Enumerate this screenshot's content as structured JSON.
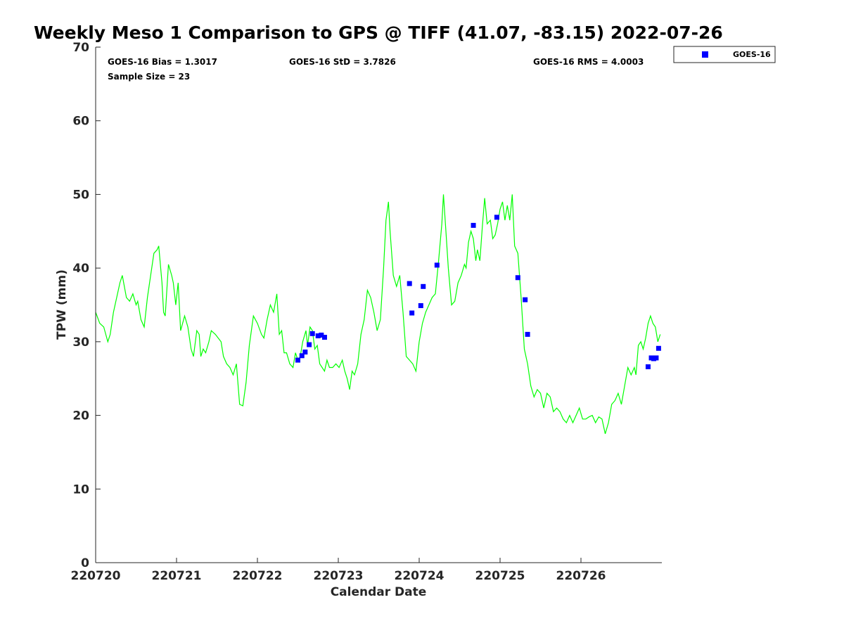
{
  "chart_data": {
    "type": "scatter",
    "title": "Weekly Meso 1 Comparison to GPS @ TIFF (41.07, -83.15) 2022-07-26",
    "xlabel": "Calendar Date",
    "ylabel": "TPW (mm)",
    "xlim": [
      0,
      7
    ],
    "ylim": [
      0,
      70
    ],
    "x_ticks": [
      {
        "x": 0,
        "label": "220720"
      },
      {
        "x": 1,
        "label": "220721"
      },
      {
        "x": 2,
        "label": "220722"
      },
      {
        "x": 3,
        "label": "220723"
      },
      {
        "x": 4,
        "label": "220724"
      },
      {
        "x": 5,
        "label": "220725"
      },
      {
        "x": 6,
        "label": "220726"
      }
    ],
    "y_ticks": [
      0,
      10,
      20,
      30,
      40,
      50,
      60,
      70
    ],
    "stats": {
      "bias": "GOES-16 Bias = 1.3017",
      "std": "GOES-16 StD = 3.7826",
      "rms": "GOES-16 RMS = 4.0003",
      "n": "Sample Size = 23"
    },
    "legend": {
      "position": "outside-top-right",
      "entries": [
        "GOES-16"
      ]
    },
    "colors": {
      "gps_line": "#00ff00",
      "goes_marker": "#0000ff"
    },
    "series": [
      {
        "name": "GPS",
        "style": "line",
        "points": [
          [
            0.0,
            34.0
          ],
          [
            0.05,
            32.5
          ],
          [
            0.1,
            32.0
          ],
          [
            0.15,
            30.0
          ],
          [
            0.18,
            31.0
          ],
          [
            0.22,
            34.0
          ],
          [
            0.3,
            38.0
          ],
          [
            0.33,
            39.0
          ],
          [
            0.38,
            36.0
          ],
          [
            0.42,
            35.5
          ],
          [
            0.46,
            36.5
          ],
          [
            0.5,
            35.0
          ],
          [
            0.52,
            35.5
          ],
          [
            0.56,
            33.0
          ],
          [
            0.6,
            32.0
          ],
          [
            0.64,
            36.0
          ],
          [
            0.68,
            39.0
          ],
          [
            0.72,
            42.0
          ],
          [
            0.76,
            42.5
          ],
          [
            0.78,
            43.0
          ],
          [
            0.82,
            38.0
          ],
          [
            0.84,
            34.0
          ],
          [
            0.86,
            33.5
          ],
          [
            0.9,
            40.5
          ],
          [
            0.94,
            39.0
          ],
          [
            0.96,
            38.0
          ],
          [
            0.99,
            35.0
          ],
          [
            1.02,
            38.0
          ],
          [
            1.05,
            31.5
          ],
          [
            1.1,
            33.5
          ],
          [
            1.14,
            32.0
          ],
          [
            1.18,
            29.0
          ],
          [
            1.21,
            28.0
          ],
          [
            1.25,
            31.5
          ],
          [
            1.28,
            31.0
          ],
          [
            1.3,
            28.0
          ],
          [
            1.33,
            29.0
          ],
          [
            1.36,
            28.5
          ],
          [
            1.4,
            30.0
          ],
          [
            1.43,
            31.5
          ],
          [
            1.48,
            31.0
          ],
          [
            1.55,
            30.0
          ],
          [
            1.58,
            28.0
          ],
          [
            1.62,
            27.0
          ],
          [
            1.66,
            26.5
          ],
          [
            1.7,
            25.5
          ],
          [
            1.74,
            27.0
          ],
          [
            1.78,
            21.5
          ],
          [
            1.82,
            21.3
          ],
          [
            1.86,
            24.5
          ],
          [
            1.9,
            29.5
          ],
          [
            1.95,
            33.5
          ],
          [
            2.0,
            32.5
          ],
          [
            2.05,
            31.0
          ],
          [
            2.08,
            30.5
          ],
          [
            2.12,
            33.0
          ],
          [
            2.16,
            35.0
          ],
          [
            2.2,
            34.0
          ],
          [
            2.24,
            36.5
          ],
          [
            2.27,
            31.0
          ],
          [
            2.3,
            31.5
          ],
          [
            2.33,
            28.5
          ],
          [
            2.36,
            28.5
          ],
          [
            2.4,
            27.0
          ],
          [
            2.44,
            26.5
          ],
          [
            2.47,
            28.5
          ],
          [
            2.5,
            27.5
          ],
          [
            2.53,
            28.0
          ],
          [
            2.56,
            30.0
          ],
          [
            2.6,
            31.5
          ],
          [
            2.62,
            29.5
          ],
          [
            2.65,
            32.0
          ],
          [
            2.68,
            31.5
          ],
          [
            2.71,
            29.0
          ],
          [
            2.74,
            29.5
          ],
          [
            2.77,
            27.0
          ],
          [
            2.8,
            26.5
          ],
          [
            2.83,
            26.0
          ],
          [
            2.86,
            27.5
          ],
          [
            2.89,
            26.5
          ],
          [
            2.93,
            26.5
          ],
          [
            2.97,
            27.0
          ],
          [
            3.01,
            26.5
          ],
          [
            3.05,
            27.5
          ],
          [
            3.08,
            26.0
          ],
          [
            3.11,
            25.0
          ],
          [
            3.14,
            23.5
          ],
          [
            3.17,
            26.0
          ],
          [
            3.2,
            25.5
          ],
          [
            3.24,
            27.0
          ],
          [
            3.28,
            31.0
          ],
          [
            3.32,
            33.0
          ],
          [
            3.36,
            37.0
          ],
          [
            3.4,
            36.0
          ],
          [
            3.44,
            34.0
          ],
          [
            3.48,
            31.5
          ],
          [
            3.52,
            33.0
          ],
          [
            3.56,
            40.0
          ],
          [
            3.59,
            46.5
          ],
          [
            3.62,
            49.0
          ],
          [
            3.64,
            45.0
          ],
          [
            3.68,
            39.0
          ],
          [
            3.72,
            37.5
          ],
          [
            3.76,
            39.0
          ],
          [
            3.8,
            34.0
          ],
          [
            3.84,
            28.0
          ],
          [
            3.88,
            27.5
          ],
          [
            3.92,
            27.0
          ],
          [
            3.96,
            26.0
          ],
          [
            4.0,
            30.0
          ],
          [
            4.04,
            32.5
          ],
          [
            4.08,
            34.0
          ],
          [
            4.12,
            35.0
          ],
          [
            4.16,
            36.0
          ],
          [
            4.2,
            36.5
          ],
          [
            4.24,
            41.0
          ],
          [
            4.28,
            46.0
          ],
          [
            4.3,
            50.0
          ],
          [
            4.33,
            45.0
          ],
          [
            4.36,
            40.0
          ],
          [
            4.4,
            35.0
          ],
          [
            4.44,
            35.5
          ],
          [
            4.48,
            38.0
          ],
          [
            4.52,
            39.0
          ],
          [
            4.56,
            40.5
          ],
          [
            4.58,
            40.0
          ],
          [
            4.61,
            43.5
          ],
          [
            4.64,
            45.0
          ],
          [
            4.67,
            44.0
          ],
          [
            4.7,
            41.0
          ],
          [
            4.72,
            42.5
          ],
          [
            4.75,
            41.0
          ],
          [
            4.78,
            45.5
          ],
          [
            4.81,
            49.5
          ],
          [
            4.84,
            46.0
          ],
          [
            4.88,
            46.5
          ],
          [
            4.91,
            44.0
          ],
          [
            4.94,
            44.5
          ],
          [
            4.97,
            46.0
          ],
          [
            5.0,
            48.0
          ],
          [
            5.03,
            49.0
          ],
          [
            5.06,
            46.5
          ],
          [
            5.09,
            48.5
          ],
          [
            5.12,
            46.5
          ],
          [
            5.15,
            50.0
          ],
          [
            5.18,
            43.0
          ],
          [
            5.22,
            42.0
          ],
          [
            5.26,
            36.0
          ],
          [
            5.3,
            29.0
          ],
          [
            5.34,
            27.0
          ],
          [
            5.38,
            24.0
          ],
          [
            5.42,
            22.5
          ],
          [
            5.46,
            23.5
          ],
          [
            5.5,
            23.0
          ],
          [
            5.54,
            21.0
          ],
          [
            5.58,
            23.0
          ],
          [
            5.62,
            22.5
          ],
          [
            5.66,
            20.5
          ],
          [
            5.7,
            21.0
          ],
          [
            5.74,
            20.5
          ],
          [
            5.78,
            19.5
          ],
          [
            5.82,
            19.0
          ],
          [
            5.86,
            20.0
          ],
          [
            5.9,
            19.0
          ],
          [
            5.94,
            20.0
          ],
          [
            5.98,
            21.0
          ],
          [
            6.02,
            19.5
          ],
          [
            6.06,
            19.5
          ],
          [
            6.1,
            19.8
          ],
          [
            6.14,
            20.0
          ],
          [
            6.18,
            19.0
          ],
          [
            6.22,
            19.8
          ],
          [
            6.26,
            19.5
          ],
          [
            6.3,
            17.5
          ],
          [
            6.34,
            19.0
          ],
          [
            6.38,
            21.5
          ],
          [
            6.42,
            22.0
          ],
          [
            6.46,
            23.0
          ],
          [
            6.5,
            21.5
          ],
          [
            6.54,
            24.0
          ],
          [
            6.58,
            26.5
          ],
          [
            6.62,
            25.5
          ],
          [
            6.66,
            26.5
          ],
          [
            6.68,
            25.5
          ],
          [
            6.71,
            29.5
          ],
          [
            6.74,
            30.0
          ],
          [
            6.77,
            29.0
          ],
          [
            6.8,
            30.5
          ],
          [
            6.83,
            32.5
          ],
          [
            6.86,
            33.5
          ],
          [
            6.89,
            32.5
          ],
          [
            6.92,
            32.0
          ],
          [
            6.95,
            30.0
          ],
          [
            6.98,
            31.0
          ]
        ]
      },
      {
        "name": "GOES-16",
        "style": "marker",
        "points": [
          [
            2.5,
            27.5
          ],
          [
            2.55,
            28.1
          ],
          [
            2.59,
            28.6
          ],
          [
            2.64,
            29.6
          ],
          [
            2.68,
            31.1
          ],
          [
            2.75,
            30.8
          ],
          [
            2.79,
            30.9
          ],
          [
            2.83,
            30.6
          ],
          [
            3.88,
            37.9
          ],
          [
            3.91,
            33.9
          ],
          [
            4.02,
            34.9
          ],
          [
            4.05,
            37.5
          ],
          [
            4.22,
            40.4
          ],
          [
            4.67,
            45.8
          ],
          [
            4.96,
            46.9
          ],
          [
            5.22,
            38.7
          ],
          [
            5.31,
            35.7
          ],
          [
            5.34,
            31.0
          ],
          [
            6.83,
            26.6
          ],
          [
            6.87,
            27.8
          ],
          [
            6.9,
            27.7
          ],
          [
            6.93,
            27.8
          ],
          [
            6.96,
            29.1
          ]
        ]
      }
    ]
  }
}
